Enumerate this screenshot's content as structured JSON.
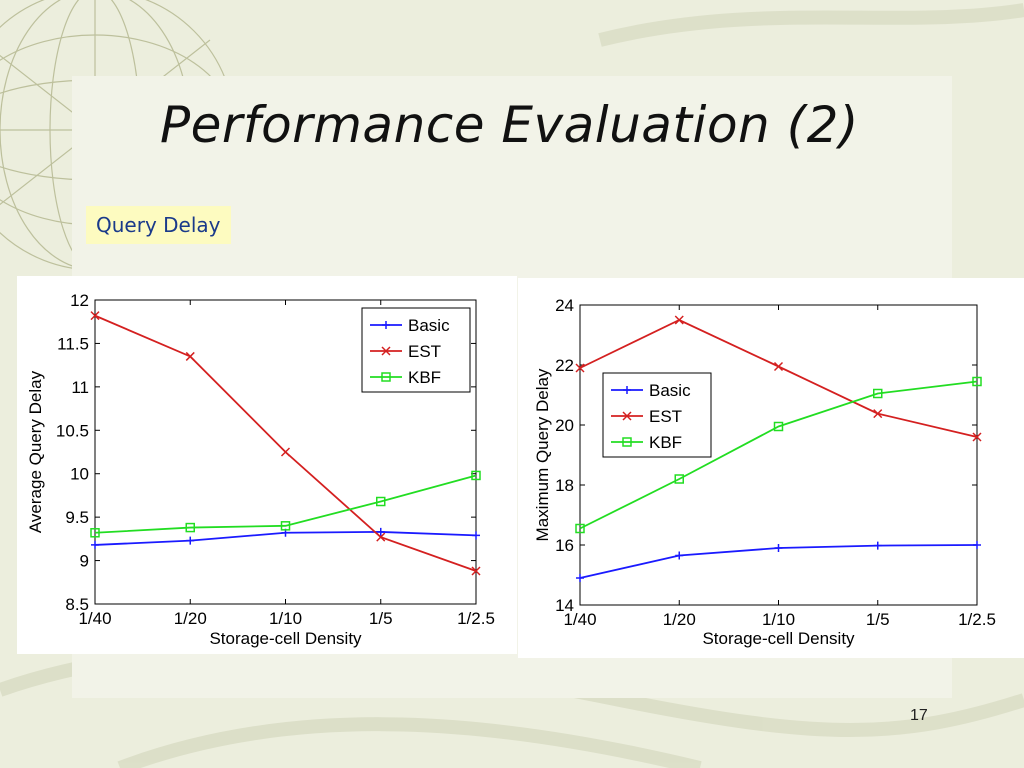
{
  "slide": {
    "title": "Performance Evaluation (2)",
    "subtitle": "Query Delay",
    "page_number": "17"
  },
  "colors": {
    "background": "#eceedd",
    "subtitle_bg": "#fdfbc0",
    "subtitle_text": "#1a3a8a",
    "basic": "#1a1aff",
    "est": "#d42020",
    "kbf": "#22dd22"
  },
  "chart_data": [
    {
      "type": "line",
      "title": "",
      "xlabel": "Storage-cell Density",
      "ylabel": "Average Query Delay",
      "categories": [
        "1/40",
        "1/20",
        "1/10",
        "1/5",
        "1/2.5"
      ],
      "ylim": [
        8.5,
        12
      ],
      "yticks": [
        "8.5",
        "9",
        "9.5",
        "10",
        "10.5",
        "11",
        "11.5",
        "12"
      ],
      "grid": false,
      "legend_position": "top-right",
      "series": [
        {
          "name": "Basic",
          "marker": "plus",
          "color": "#1a1aff",
          "values": [
            9.18,
            9.23,
            9.32,
            9.33,
            9.29
          ]
        },
        {
          "name": "EST",
          "marker": "x",
          "color": "#d42020",
          "values": [
            11.82,
            11.35,
            10.25,
            9.27,
            8.88
          ]
        },
        {
          "name": "KBF",
          "marker": "square",
          "color": "#22dd22",
          "values": [
            9.32,
            9.38,
            9.4,
            9.68,
            9.98
          ]
        }
      ]
    },
    {
      "type": "line",
      "title": "",
      "xlabel": "Storage-cell Density",
      "ylabel": "Maximum Query Delay",
      "categories": [
        "1/40",
        "1/20",
        "1/10",
        "1/5",
        "1/2.5"
      ],
      "ylim": [
        14,
        24
      ],
      "yticks": [
        "14",
        "16",
        "18",
        "20",
        "22",
        "24"
      ],
      "grid": false,
      "legend_position": "middle-left",
      "series": [
        {
          "name": "Basic",
          "marker": "plus",
          "color": "#1a1aff",
          "values": [
            14.9,
            15.65,
            15.9,
            15.98,
            16.0
          ]
        },
        {
          "name": "EST",
          "marker": "x",
          "color": "#d42020",
          "values": [
            21.9,
            23.5,
            21.95,
            20.38,
            19.6
          ]
        },
        {
          "name": "KBF",
          "marker": "square",
          "color": "#22dd22",
          "values": [
            16.55,
            18.2,
            19.95,
            21.05,
            21.45
          ]
        }
      ]
    }
  ]
}
